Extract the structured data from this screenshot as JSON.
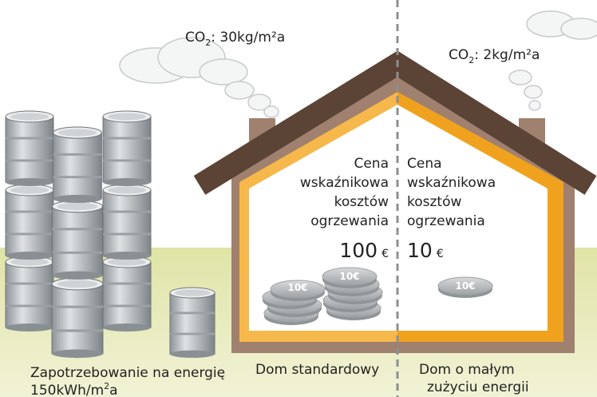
{
  "co2_standard": {
    "prefix": "CO",
    "sub": "2",
    "suffix": ": 30kg/m²a"
  },
  "co2_low": {
    "prefix": "CO",
    "sub": "2",
    "suffix": ": 2kg/m²a"
  },
  "house_standard": {
    "lines": [
      "Cena",
      "wskaźnikowa",
      "kosztów",
      "ogrzewania"
    ],
    "price": "100",
    "currency": "€",
    "label": "Dom standardowy"
  },
  "house_low": {
    "lines": [
      "Cena",
      "wskaźnikowa",
      "kosztów",
      "ogrzewania"
    ],
    "price": "10",
    "currency": "€",
    "label_lines": [
      "Dom o małym",
      "zużyciu energii"
    ]
  },
  "coin_label": "10€",
  "energy_demand": {
    "title": "Zapotrzebowanie na energię",
    "value_prefix": "150kWh/m",
    "value_sup": "2",
    "value_suffix": "a"
  }
}
